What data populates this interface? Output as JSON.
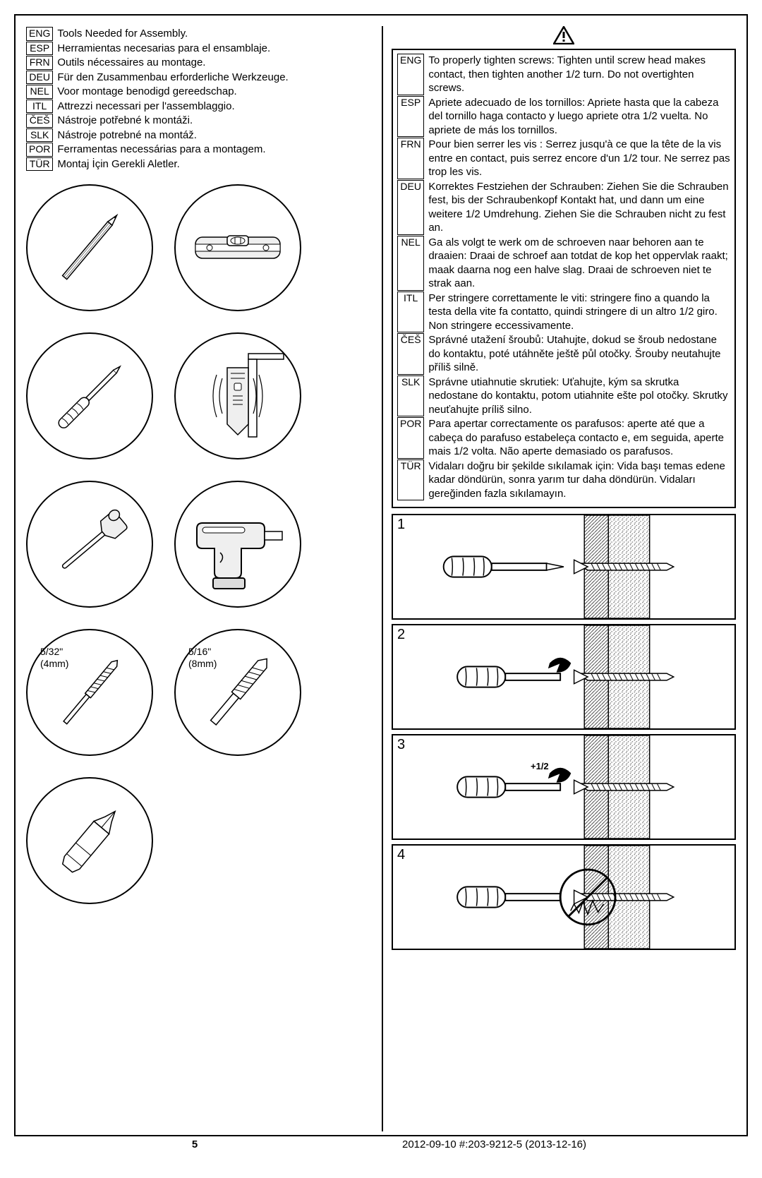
{
  "left_langs": [
    {
      "code": "ENG",
      "text": "Tools Needed for Assembly."
    },
    {
      "code": "ESP",
      "text": "Herramientas necesarias para el ensamblaje."
    },
    {
      "code": "FRN",
      "text": "Outils nécessaires au montage."
    },
    {
      "code": "DEU",
      "text": "Für den Zusammenbau erforderliche Werkzeuge."
    },
    {
      "code": "NEL",
      "text": "Voor montage benodigd gereedschap."
    },
    {
      "code": "ITL",
      "text": "Attrezzi necessari per l'assemblaggio."
    },
    {
      "code": "ČEŠ",
      "text": "Nástroje potřebné k montáži."
    },
    {
      "code": "SLK",
      "text": "Nástroje potrebné na montáž."
    },
    {
      "code": "POR",
      "text": "Ferramentas necessárias para a montagem."
    },
    {
      "code": "TÜR",
      "text": "Montaj İçin Gerekli Aletler."
    }
  ],
  "right_langs": [
    {
      "code": "ENG",
      "text": "To properly tighten screws: Tighten until screw head makes contact, then tighten another 1/2 turn. Do not overtighten screws."
    },
    {
      "code": "ESP",
      "text": "Apriete adecuado de los tornillos: Apriete hasta que la cabeza del tornillo haga contacto y luego apriete otra 1/2 vuelta. No apriete de más los tornillos."
    },
    {
      "code": "FRN",
      "text": "Pour bien serrer les vis : Serrez jusqu'à ce que la tête de la vis entre en contact, puis serrez encore d'un 1/2 tour. Ne serrez pas trop les vis."
    },
    {
      "code": "DEU",
      "text": "Korrektes Festziehen der Schrauben: Ziehen Sie die Schrauben fest, bis der Schraubenkopf Kontakt hat, und dann um eine weitere 1/2 Umdrehung.  Ziehen Sie die Schrauben nicht zu fest an."
    },
    {
      "code": "NEL",
      "text": "Ga als volgt te werk om de schroeven naar behoren aan te draaien: Draai de schroef aan totdat de kop het oppervlak raakt; maak daarna nog een halve slag. Draai de schroeven niet te strak aan."
    },
    {
      "code": "ITL",
      "text": "Per stringere correttamente le viti: stringere fino a quando la testa della vite fa contatto, quindi stringere di un altro 1/2 giro. Non stringere eccessivamente."
    },
    {
      "code": "ČEŠ",
      "text": "Správné utažení šroubů: Utahujte, dokud se šroub nedostane do kontaktu, poté utáhněte ještě půl otočky. Šrouby neutahujte příliš silně."
    },
    {
      "code": "SLK",
      "text": "Správne utiahnutie skrutiek: Uťahujte, kým sa skrutka nedostane do kontaktu, potom utiahnite ešte pol otočky. Skrutky neuťahujte príliš silno."
    },
    {
      "code": "POR",
      "text": "Para apertar correctamente os parafusos: aperte até que a cabeça do parafuso estabeleça contacto e, em seguida, aperte mais 1/2 volta. Não aperte demasiado os parafusos."
    },
    {
      "code": "TÜR",
      "text": "Vidaları doğru bir şekilde sıkılamak için: Vida başı temas edene kadar döndürün, sonra yarım tur daha döndürün. Vidaları gereğinden fazla sıkılamayın."
    }
  ],
  "tools": [
    {
      "name": "pencil",
      "label": ""
    },
    {
      "name": "level",
      "label": ""
    },
    {
      "name": "screwdriver",
      "label": ""
    },
    {
      "name": "stud-finder",
      "label": ""
    },
    {
      "name": "hammer",
      "label": ""
    },
    {
      "name": "drill",
      "label": ""
    },
    {
      "name": "drill-bit-small",
      "label": "5/32\"\n(4mm)"
    },
    {
      "name": "drill-bit-large",
      "label": "5/16\"\n(8mm)"
    },
    {
      "name": "phillips-bit",
      "label": ""
    }
  ],
  "steps": [
    "1",
    "2",
    "3",
    "4"
  ],
  "half_turn_label": "+1/2",
  "page_number": "5",
  "footer_text": "2012-09-10   #:203-9212-5   (2013-12-16)",
  "colors": {
    "stroke": "#000000",
    "fill_light": "#f5f5f5",
    "wall_pattern": "#888888"
  }
}
